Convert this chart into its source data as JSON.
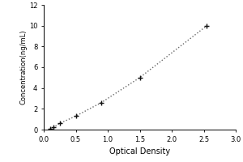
{
  "x_data": [
    0.1,
    0.15,
    0.25,
    0.5,
    0.9,
    1.5,
    2.55
  ],
  "y_data": [
    0.1,
    0.2,
    0.6,
    1.3,
    2.6,
    5.0,
    10.0
  ],
  "xlabel": "Optical Density",
  "ylabel": "Concentration(ng/mL)",
  "xlim": [
    0,
    3
  ],
  "ylim": [
    0,
    12
  ],
  "xticks": [
    0,
    0.5,
    1,
    1.5,
    2,
    2.5,
    3
  ],
  "yticks": [
    0,
    2,
    4,
    6,
    8,
    10,
    12
  ],
  "line_color": "#666666",
  "marker_color": "#111111",
  "bg_color": "#ffffff",
  "tick_fontsize": 6,
  "label_fontsize": 7,
  "ylabel_fontsize": 6
}
